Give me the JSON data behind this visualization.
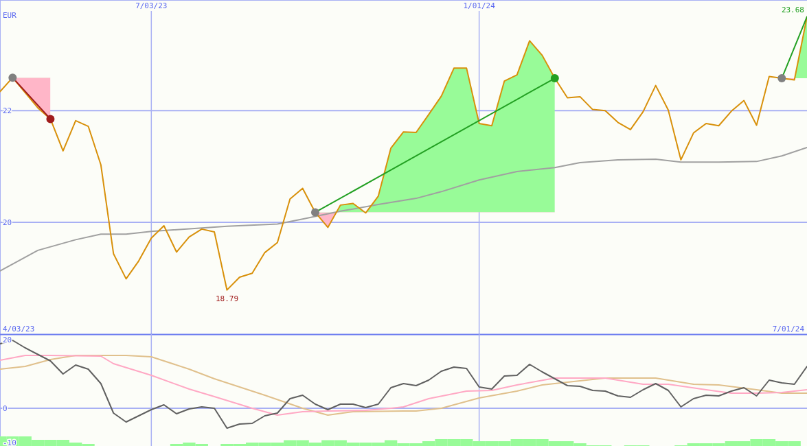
{
  "chart_data": [
    {
      "type": "line",
      "ylabel": "EUR",
      "xlim": [
        "2023-04-10",
        "2024-07-01"
      ],
      "ylim": [
        18,
        23.98
      ],
      "xticks": [
        {
          "value": "2023-07-03",
          "label": "7/03/23"
        },
        {
          "value": "2024-01-01",
          "label": "1/01/24"
        }
      ],
      "yticks": [
        20,
        22
      ],
      "grid": true,
      "x": [
        "2023-04-10",
        "2023-04-17",
        "2023-04-24",
        "2023-05-01",
        "2023-05-08",
        "2023-05-15",
        "2023-05-22",
        "2023-05-29",
        "2023-06-05",
        "2023-06-12",
        "2023-06-19",
        "2023-06-26",
        "2023-07-03",
        "2023-07-10",
        "2023-07-17",
        "2023-07-24",
        "2023-07-31",
        "2023-08-07",
        "2023-08-14",
        "2023-08-21",
        "2023-08-28",
        "2023-09-04",
        "2023-09-11",
        "2023-09-18",
        "2023-09-25",
        "2023-10-02",
        "2023-10-09",
        "2023-10-16",
        "2023-10-23",
        "2023-10-30",
        "2023-11-06",
        "2023-11-13",
        "2023-11-20",
        "2023-11-27",
        "2023-12-04",
        "2023-12-11",
        "2023-12-18",
        "2023-12-25",
        "2024-01-01",
        "2024-01-08",
        "2024-01-15",
        "2024-01-22",
        "2024-01-29",
        "2024-02-05",
        "2024-02-12",
        "2024-02-19",
        "2024-02-26",
        "2024-03-04",
        "2024-03-11",
        "2024-03-18",
        "2024-03-25",
        "2024-04-01",
        "2024-04-08",
        "2024-04-15",
        "2024-04-22",
        "2024-04-29",
        "2024-05-06",
        "2024-05-13",
        "2024-05-20",
        "2024-05-27",
        "2024-06-03",
        "2024-06-10",
        "2024-06-17",
        "2024-06-24",
        "2024-07-01"
      ],
      "series": [
        {
          "color": "#a0a0a0",
          "x": [
            "2023-04-10",
            "2023-05-01",
            "2023-05-22",
            "2023-06-05",
            "2023-06-19",
            "2023-07-03",
            "2023-08-14",
            "2023-09-11",
            "2023-09-25",
            "2023-10-16",
            "2023-11-06",
            "2023-11-27",
            "2023-12-11",
            "2024-01-01",
            "2024-01-22",
            "2024-02-12",
            "2024-02-26",
            "2024-03-18",
            "2024-04-08",
            "2024-04-22",
            "2024-05-13",
            "2024-06-03",
            "2024-06-17",
            "2024-07-01"
          ],
          "values": [
            19.13,
            19.5,
            19.69,
            19.79,
            19.79,
            19.84,
            19.93,
            19.97,
            20.06,
            20.2,
            20.32,
            20.43,
            20.55,
            20.76,
            20.91,
            20.98,
            21.07,
            21.12,
            21.13,
            21.08,
            21.08,
            21.09,
            21.19,
            21.34
          ]
        },
        {
          "color": "#d8900a",
          "values": [
            22.34,
            22.59,
            22.32,
            22.05,
            21.85,
            21.28,
            21.82,
            21.72,
            21.03,
            19.44,
            18.99,
            19.31,
            19.72,
            19.94,
            19.47,
            19.74,
            19.88,
            19.83,
            18.79,
            19.02,
            19.09,
            19.46,
            19.64,
            20.42,
            20.61,
            20.18,
            19.91,
            20.31,
            20.34,
            20.17,
            20.47,
            21.33,
            21.62,
            21.61,
            21.93,
            22.26,
            22.76,
            22.76,
            21.77,
            21.73,
            22.53,
            22.64,
            23.25,
            22.99,
            22.58,
            22.23,
            22.25,
            22.02,
            22.0,
            21.79,
            21.66,
            21.98,
            22.45,
            22.01,
            21.12,
            21.6,
            21.77,
            21.73,
            21.99,
            22.18,
            21.74,
            22.61,
            22.58,
            22.55,
            23.68
          ],
          "lower": [
            null,
            22.59,
            22.59,
            22.59,
            22.59,
            null,
            null,
            null,
            null,
            null,
            null,
            null,
            null,
            null,
            null,
            null,
            null,
            null,
            null,
            null,
            null,
            null,
            null,
            null,
            null,
            20.18,
            20.18,
            20.18,
            20.18,
            20.18,
            20.18,
            20.18,
            20.18,
            20.18,
            20.18,
            20.18,
            20.18,
            20.18,
            20.18,
            20.18,
            20.18,
            20.18,
            20.18,
            20.18,
            20.18,
            null,
            null,
            null,
            null,
            null,
            null,
            null,
            null,
            null,
            null,
            null,
            null,
            null,
            null,
            null,
            null,
            null,
            22.58,
            22.58,
            22.58
          ],
          "upper": [
            null,
            22.59,
            22.32,
            22.05,
            21.85,
            null,
            null,
            null,
            null,
            null,
            null,
            null,
            null,
            null,
            null,
            null,
            null,
            null,
            null,
            null,
            null,
            null,
            null,
            null,
            null,
            20.18,
            19.91,
            20.31,
            20.34,
            20.17,
            20.47,
            21.33,
            21.62,
            21.61,
            21.93,
            22.26,
            22.76,
            22.76,
            21.77,
            21.73,
            22.53,
            22.64,
            23.25,
            22.99,
            22.58,
            null,
            null,
            null,
            null,
            null,
            null,
            null,
            null,
            null,
            null,
            null,
            null,
            null,
            null,
            null,
            null,
            null,
            22.58,
            22.55,
            23.68
          ]
        },
        {
          "color": "#a01c1c",
          "x": [
            "2023-04-17",
            "2023-05-08"
          ],
          "values": [
            22.59,
            21.85
          ]
        },
        {
          "color": "#22a022",
          "x": [
            "2023-10-02",
            "2024-02-12"
          ],
          "values": [
            20.18,
            22.58
          ]
        },
        {
          "color": "#22a022",
          "x": [
            "2024-06-17",
            "2024-07-01"
          ],
          "values": [
            22.58,
            23.68
          ]
        },
        {
          "type": "scatter",
          "color": "#808080",
          "marker": "circle",
          "x": [
            "2023-04-17",
            "2023-10-02",
            "2024-06-17"
          ],
          "values": [
            22.59,
            20.18,
            22.58
          ]
        },
        {
          "type": "scatter",
          "color": "#a01c1c",
          "marker": "circle",
          "x": [
            "2023-05-08"
          ],
          "values": [
            21.85
          ]
        },
        {
          "type": "scatter",
          "color": "#22a022",
          "marker": "circle",
          "x": [
            "2024-02-12"
          ],
          "values": [
            22.58
          ]
        }
      ],
      "annotations": [
        {
          "text": "23.68",
          "x": "2024-07-01",
          "y": 23.68
        },
        {
          "text": "18.79",
          "x": "2023-08-14",
          "y": 18.79
        },
        "4/03/23",
        "7/01/24"
      ]
    },
    {
      "type": "line",
      "xlim": [
        "2023-04-10",
        "2024-07-01"
      ],
      "ylim": [
        -11,
        21.6
      ],
      "xticks": [
        {
          "value": "2023-07-03",
          "label": null
        },
        {
          "value": "2024-01-01",
          "label": null
        }
      ],
      "yticks": [
        -10,
        0,
        20
      ],
      "tick_labels": "y",
      "grid": "x",
      "ref_lines": [
        {
          "axis": "y",
          "value": 0
        }
      ],
      "x": [
        "2023-04-10",
        "2023-04-17",
        "2023-04-24",
        "2023-05-01",
        "2023-05-08",
        "2023-05-15",
        "2023-05-22",
        "2023-05-29",
        "2023-06-05",
        "2023-06-12",
        "2023-06-19",
        "2023-06-26",
        "2023-07-03",
        "2023-07-10",
        "2023-07-17",
        "2023-07-24",
        "2023-07-31",
        "2023-08-07",
        "2023-08-14",
        "2023-08-21",
        "2023-08-28",
        "2023-09-04",
        "2023-09-11",
        "2023-09-18",
        "2023-09-25",
        "2023-10-02",
        "2023-10-09",
        "2023-10-16",
        "2023-10-23",
        "2023-10-30",
        "2023-11-06",
        "2023-11-13",
        "2023-11-20",
        "2023-11-27",
        "2023-12-04",
        "2023-12-11",
        "2023-12-18",
        "2023-12-25",
        "2024-01-01",
        "2024-01-08",
        "2024-01-15",
        "2024-01-22",
        "2024-01-29",
        "2024-02-05",
        "2024-02-12",
        "2024-02-19",
        "2024-02-26",
        "2024-03-04",
        "2024-03-11",
        "2024-03-18",
        "2024-03-25",
        "2024-04-01",
        "2024-04-08",
        "2024-04-15",
        "2024-04-22",
        "2024-04-29",
        "2024-05-06",
        "2024-05-13",
        "2024-05-20",
        "2024-05-27",
        "2024-06-03",
        "2024-06-10",
        "2024-06-17",
        "2024-06-24",
        "2024-07-01"
      ],
      "series": [
        {
          "type": "bar",
          "color": "#98fb98",
          "x": [
            "2023-04-10",
            "2023-04-17",
            "2023-04-24",
            "2023-05-01",
            "2023-05-08",
            "2023-05-15",
            "2023-05-22",
            "2023-05-29",
            "2023-06-05",
            "2023-06-12",
            "2023-06-19",
            "2023-06-26",
            "2023-07-03",
            "2023-07-10",
            "2023-07-17",
            "2023-07-24",
            "2023-07-31",
            "2023-08-07",
            "2023-08-14",
            "2023-08-21",
            "2023-08-28",
            "2023-09-04",
            "2023-09-11",
            "2023-09-18",
            "2023-09-25",
            "2023-10-02",
            "2023-10-09",
            "2023-10-16",
            "2023-10-23",
            "2023-10-30",
            "2023-11-06",
            "2023-11-13",
            "2023-11-20",
            "2023-11-27",
            "2023-12-04",
            "2023-12-11",
            "2023-12-18",
            "2023-12-25",
            "2024-01-01",
            "2024-01-08",
            "2024-01-15",
            "2024-01-22",
            "2024-01-29",
            "2024-02-05",
            "2024-02-12",
            "2024-02-19",
            "2024-02-26",
            "2024-03-04",
            "2024-03-11",
            "2024-03-18",
            "2024-03-25",
            "2024-04-01",
            "2024-04-08",
            "2024-04-15",
            "2024-04-22",
            "2024-04-29",
            "2024-05-06",
            "2024-05-13",
            "2024-05-20",
            "2024-05-27",
            "2024-06-03",
            "2024-06-10",
            "2024-06-17",
            "2024-06-24"
          ],
          "values": [
            2.8,
            2.8,
            2.8,
            1.8,
            1.8,
            1.8,
            1,
            0.6,
            null,
            null,
            null,
            null,
            null,
            null,
            0.6,
            1,
            0.6,
            null,
            0.6,
            0.6,
            1,
            1,
            1,
            1.7,
            1.7,
            1,
            1.7,
            1.7,
            1,
            1,
            1,
            1.7,
            0.8,
            0.8,
            1.4,
            2,
            2,
            2,
            1.4,
            1.4,
            1.4,
            2,
            2,
            2,
            1.4,
            1.4,
            0.8,
            0.2,
            0.2,
            null,
            0.2,
            0.2,
            null,
            null,
            0.2,
            0.8,
            0.8,
            0.8,
            1.4,
            1.4,
            2,
            2,
            1.4,
            1.4
          ],
          "base": [
            -11,
            -11,
            -11,
            -11,
            -11,
            -11,
            -11,
            -11,
            null,
            null,
            null,
            null,
            null,
            null,
            -11,
            -11,
            -11,
            null,
            -11,
            -11,
            -11,
            -11,
            -11,
            -11,
            -11,
            -11,
            -11,
            -11,
            -11,
            -11,
            -11,
            -11,
            -11,
            -11,
            -11,
            -11,
            -11,
            -11,
            -11,
            -11,
            -11,
            -11,
            -11,
            -11,
            -11,
            -11,
            -11,
            -11,
            -11,
            null,
            -11,
            -11,
            null,
            null,
            -11,
            -11,
            -11,
            -11,
            -11,
            -11,
            -11,
            -11,
            -11,
            -11
          ]
        },
        {
          "color": "#e0c08c",
          "x": [
            "2023-04-10",
            "2023-04-24",
            "2023-05-08",
            "2023-05-22",
            "2023-06-19",
            "2023-07-03",
            "2023-07-24",
            "2023-08-07",
            "2023-09-04",
            "2023-09-25",
            "2023-10-09",
            "2023-10-23",
            "2023-11-20",
            "2023-11-27",
            "2023-12-11",
            "2024-01-01",
            "2024-01-22",
            "2024-02-05",
            "2024-03-11",
            "2024-04-08",
            "2024-04-29",
            "2024-05-13",
            "2024-06-03",
            "2024-06-17",
            "2024-07-01"
          ],
          "values": [
            11.4,
            12.2,
            14.2,
            15.4,
            15.4,
            15,
            11.4,
            8.6,
            3.8,
            0,
            -2,
            -1,
            -0.8,
            -0.8,
            0,
            3,
            5,
            6.8,
            8.8,
            8.8,
            7,
            6.8,
            5.4,
            4.4,
            4.4
          ]
        },
        {
          "color": "#ffa8c4",
          "x": [
            "2023-04-10",
            "2023-04-24",
            "2023-05-08",
            "2023-06-05",
            "2023-06-12",
            "2023-07-03",
            "2023-07-24",
            "2023-08-07",
            "2023-08-28",
            "2023-09-11",
            "2023-09-25",
            "2023-10-09",
            "2023-10-30",
            "2023-11-13",
            "2023-11-20",
            "2023-12-04",
            "2023-12-25",
            "2024-01-08",
            "2024-01-22",
            "2024-02-12",
            "2024-03-11",
            "2024-04-01",
            "2024-04-15",
            "2024-05-06",
            "2024-05-20",
            "2024-06-03",
            "2024-06-17",
            "2024-07-01"
          ],
          "values": [
            14,
            15.4,
            15.4,
            15.2,
            13,
            9.6,
            5.6,
            3.4,
            0,
            -2,
            -1,
            -0.8,
            -0.6,
            0,
            0.4,
            2.8,
            5,
            5.2,
            6.8,
            8.8,
            8.8,
            7,
            7,
            5.4,
            4.4,
            4.4,
            4.6,
            5.4
          ]
        },
        {
          "color": "#606060",
          "values": [
            18.8,
            19.8,
            17.6,
            15.7,
            13.8,
            10,
            12.6,
            11.4,
            7.2,
            -1.4,
            -4,
            -2.2,
            -0.4,
            1,
            -1.6,
            -0.2,
            0.4,
            0,
            -5.8,
            -4.6,
            -4.4,
            -2.2,
            -1.4,
            2.8,
            3.8,
            1.2,
            -0.4,
            1.2,
            1.2,
            0.2,
            1.2,
            6,
            7.2,
            6.6,
            8.2,
            10.8,
            12,
            11.6,
            6.2,
            5.6,
            9.4,
            9.6,
            12.8,
            10.6,
            8.6,
            6.6,
            6.4,
            5.2,
            5,
            3.6,
            3.2,
            5.4,
            7.2,
            5.2,
            0.4,
            2.8,
            3.8,
            3.6,
            5,
            6,
            3.6,
            8.2,
            7.4,
            7,
            12.2
          ]
        }
      ]
    }
  ]
}
